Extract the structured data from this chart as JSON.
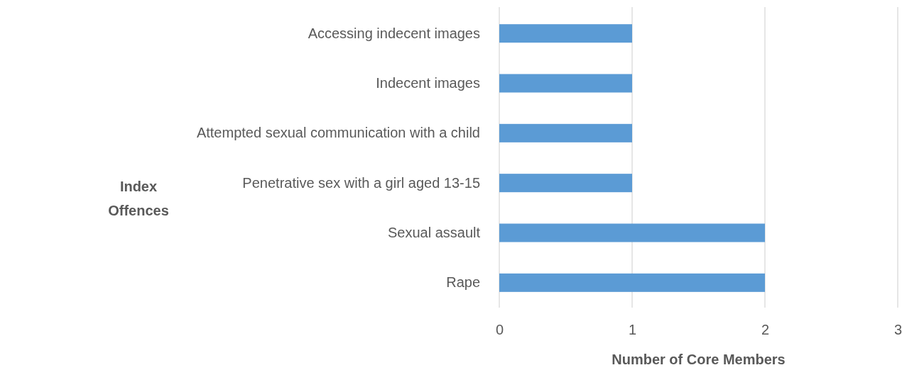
{
  "chart_data": {
    "type": "bar",
    "orientation": "horizontal",
    "categories": [
      "Accessing indecent images",
      "Indecent images",
      "Attempted sexual communication with a child",
      "Penetrative sex with a girl aged 13-15",
      "Sexual assault",
      "Rape"
    ],
    "values": [
      1,
      1,
      1,
      1,
      2,
      2
    ],
    "color": "#5b9bd5",
    "xlim": [
      0,
      3
    ],
    "xticks": [
      0,
      1,
      2,
      3
    ],
    "grid": "x",
    "xlabel": "Number of Core Members",
    "ylabel": "Index Offences"
  }
}
